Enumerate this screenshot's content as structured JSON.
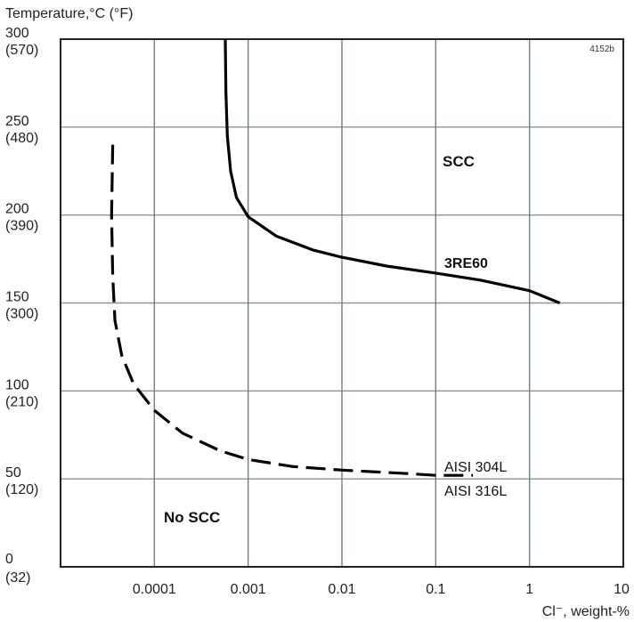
{
  "chart_data": {
    "type": "line",
    "xscale": "log",
    "xlim": [
      1e-05,
      10
    ],
    "ylim": [
      0,
      300
    ],
    "yaxis_title": "Temperature,°C (°F)",
    "xaxis_title": "Cl⁻, weight-%",
    "figure_id": "4152b",
    "y_ticks": [
      {
        "c": "0",
        "f": "(32)"
      },
      {
        "c": "50",
        "f": "(120)"
      },
      {
        "c": "100",
        "f": "(210)"
      },
      {
        "c": "150",
        "f": "(300)"
      },
      {
        "c": "200",
        "f": "(390)"
      },
      {
        "c": "250",
        "f": "(480)"
      },
      {
        "c": "300",
        "f": "(570)"
      }
    ],
    "y_tick_values": [
      0,
      50,
      100,
      150,
      200,
      250,
      300
    ],
    "x_ticks": [
      "0.0001",
      "0.001",
      "0.01",
      "0.1",
      "1",
      "10"
    ],
    "x_tick_values": [
      0.0001,
      0.001,
      0.01,
      0.1,
      1,
      10
    ],
    "grid": true,
    "series": [
      {
        "name": "3RE60",
        "style": "solid",
        "points": [
          [
            0.00057,
            300
          ],
          [
            0.00058,
            270
          ],
          [
            0.0006,
            245
          ],
          [
            0.00065,
            225
          ],
          [
            0.00075,
            210
          ],
          [
            0.001,
            199
          ],
          [
            0.002,
            188
          ],
          [
            0.005,
            180
          ],
          [
            0.01,
            176
          ],
          [
            0.03,
            171
          ],
          [
            0.1,
            167
          ],
          [
            0.3,
            163
          ],
          [
            1,
            157
          ],
          [
            2.1,
            150
          ]
        ]
      },
      {
        "name": "AISI 304L / AISI 316L",
        "style": "dashed",
        "points": [
          [
            3.6e-05,
            240
          ],
          [
            3.5e-05,
            200
          ],
          [
            3.6e-05,
            165
          ],
          [
            3.8e-05,
            140
          ],
          [
            4.5e-05,
            120
          ],
          [
            6e-05,
            104
          ],
          [
            0.0001,
            89
          ],
          [
            0.0002,
            76
          ],
          [
            0.0005,
            66
          ],
          [
            0.001,
            61
          ],
          [
            0.003,
            57
          ],
          [
            0.01,
            55
          ],
          [
            0.05,
            53
          ],
          [
            0.1,
            52
          ],
          [
            0.25,
            52
          ]
        ]
      }
    ],
    "annotations": {
      "scc": "SCC",
      "no_scc": "No SCC",
      "re60": "3RE60",
      "aisi304": "AISI 304L",
      "aisi316": "AISI 316L"
    }
  }
}
